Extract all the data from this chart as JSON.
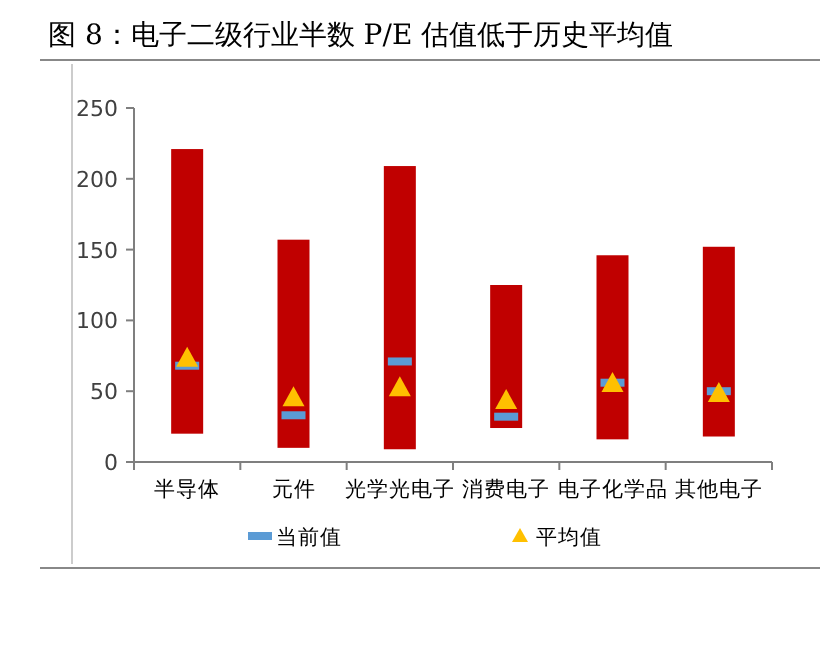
{
  "chart_data": {
    "type": "bar",
    "title": "图 8：电子二级行业半数 P/E 估值低于历史平均值",
    "categories": [
      "半导体",
      "元件",
      "光学光电子",
      "消费电子",
      "电子化学品",
      "其他电子"
    ],
    "series": [
      {
        "color": "#c00000",
        "base": [
          20,
          10,
          9,
          24,
          16,
          18
        ],
        "values": [
          201,
          147,
          200,
          101,
          130,
          134
        ]
      },
      {
        "type": "scatter",
        "name": "当前值",
        "color": "#5b9bd5",
        "marker": "square",
        "x": [
          "半导体",
          "元件",
          "光学光电子",
          "消费电子",
          "电子化学品",
          "其他电子"
        ],
        "values": [
          68,
          33,
          71,
          32,
          56,
          50
        ]
      },
      {
        "type": "scatter",
        "name": "平均值",
        "color": "#ffc000",
        "marker": "triangle",
        "x": [
          "半导体",
          "元件",
          "光学光电子",
          "消费电子",
          "电子化学品",
          "其他电子"
        ],
        "values": [
          73,
          45,
          52,
          43,
          55,
          48
        ]
      }
    ],
    "ylim": [
      0,
      250
    ],
    "yticks": [
      0,
      50,
      100,
      150,
      200,
      250
    ],
    "grid": false,
    "legend": "bottom"
  }
}
